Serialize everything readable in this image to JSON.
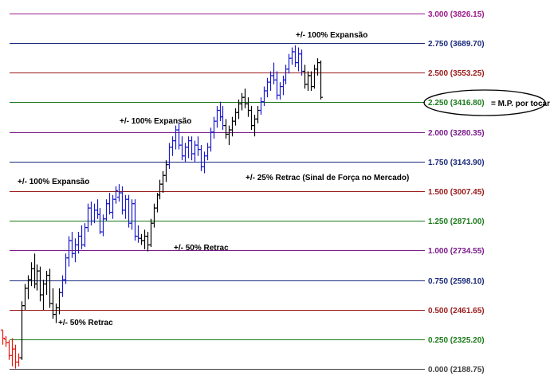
{
  "chart_data": {
    "type": "ohlc",
    "y_scale": "index",
    "ylim": [
      2188.75,
      3826.15
    ],
    "colors": {
      "red": "#e8140c",
      "black": "#000000",
      "blue": "#1a1acc"
    },
    "levels": [
      {
        "ratio": "0.000",
        "value": "2188.75",
        "price": 2188.75,
        "color": "#404040"
      },
      {
        "ratio": "0.250",
        "value": "2325.20",
        "price": 2325.2,
        "color": "#1a7a1a"
      },
      {
        "ratio": "0.500",
        "value": "2461.65",
        "price": 2461.65,
        "color": "#9a1a1a"
      },
      {
        "ratio": "0.750",
        "value": "2598.10",
        "price": 2598.1,
        "color": "#1a2a7a"
      },
      {
        "ratio": "1.000",
        "value": "2734.55",
        "price": 2734.55,
        "color": "#7a1a8a"
      },
      {
        "ratio": "1.250",
        "value": "2871.00",
        "price": 2871.0,
        "color": "#1a7a1a"
      },
      {
        "ratio": "1.500",
        "value": "3007.45",
        "price": 3007.45,
        "color": "#9a1a1a"
      },
      {
        "ratio": "1.750",
        "value": "3143.90",
        "price": 3143.9,
        "color": "#1a2a7a"
      },
      {
        "ratio": "2.000",
        "value": "3280.35",
        "price": 3280.35,
        "color": "#7a1a8a"
      },
      {
        "ratio": "2.250",
        "value": "3416.80",
        "price": 3416.8,
        "color": "#1a7a1a"
      },
      {
        "ratio": "2.500",
        "value": "3553.25",
        "price": 3553.25,
        "color": "#9a1a1a"
      },
      {
        "ratio": "2.750",
        "value": "3689.70",
        "price": 3689.7,
        "color": "#1a2a7a"
      },
      {
        "ratio": "3.000",
        "value": "3826.15",
        "price": 3826.15,
        "color": "#9a1a8a"
      }
    ],
    "annotations": [
      {
        "text": "+/- 100% Expansão"
      },
      {
        "text": "+/- 100% Expansão"
      },
      {
        "text": "+/- 100% Expansão"
      },
      {
        "text": "+/- 25% Retrac (Sinal de Força no Mercado)"
      },
      {
        "text": "+/- 50% Retrac"
      },
      {
        "text": "+/- 50% Retrac"
      }
    ],
    "callout": {
      "text": "= M.P. por tocar"
    },
    "series": [
      {
        "color": "red",
        "bars": [
          [
            2368,
            2368,
            2300,
            2330
          ],
          [
            2326,
            2340,
            2290,
            2310
          ],
          [
            2310,
            2320,
            2230,
            2250
          ],
          [
            2250,
            2330,
            2200,
            2280
          ],
          [
            2280,
            2300,
            2190,
            2220
          ],
          [
            2220,
            2260,
            2200,
            2240
          ]
        ]
      },
      {
        "color": "black",
        "bars": [
          [
            2240,
            2500,
            2230,
            2480
          ],
          [
            2480,
            2580,
            2460,
            2560
          ],
          [
            2560,
            2620,
            2510,
            2600
          ],
          [
            2600,
            2680,
            2570,
            2650
          ],
          [
            2650,
            2720,
            2560,
            2580
          ],
          [
            2580,
            2670,
            2550,
            2640
          ],
          [
            2640,
            2660,
            2500,
            2530
          ],
          [
            2530,
            2600,
            2460,
            2580
          ],
          [
            2580,
            2640,
            2530,
            2620
          ],
          [
            2620,
            2650,
            2470,
            2490
          ],
          [
            2490,
            2560,
            2420,
            2440
          ],
          [
            2440,
            2490,
            2400,
            2470
          ],
          [
            2470,
            2560,
            2440,
            2540
          ]
        ]
      },
      {
        "color": "blue",
        "bars": [
          [
            2540,
            2620,
            2520,
            2600
          ],
          [
            2600,
            2720,
            2580,
            2700
          ],
          [
            2700,
            2800,
            2660,
            2780
          ],
          [
            2780,
            2820,
            2700,
            2720
          ],
          [
            2720,
            2790,
            2680,
            2760
          ],
          [
            2760,
            2820,
            2720,
            2800
          ],
          [
            2800,
            2850,
            2740,
            2760
          ],
          [
            2760,
            2860,
            2750,
            2840
          ],
          [
            2840,
            2950,
            2820,
            2930
          ],
          [
            2930,
            2960,
            2850,
            2870
          ],
          [
            2870,
            2950,
            2860,
            2920
          ],
          [
            2920,
            2970,
            2880,
            2900
          ],
          [
            2900,
            2930,
            2810,
            2820
          ],
          [
            2820,
            2900,
            2800,
            2880
          ],
          [
            2880,
            2970,
            2870,
            2950
          ],
          [
            2950,
            3000,
            2900,
            2910
          ],
          [
            2910,
            2990,
            2880,
            2970
          ],
          [
            2970,
            3030,
            2950,
            3010
          ],
          [
            2980,
            3040,
            2960,
            3000
          ],
          [
            3000,
            3030,
            2900,
            2920
          ],
          [
            2920,
            2990,
            2880,
            2970
          ],
          [
            2970,
            2990,
            2840,
            2860
          ],
          [
            2860,
            2970,
            2830,
            2950
          ],
          [
            2950,
            2970,
            2780,
            2800
          ],
          [
            2800,
            2850,
            2770,
            2790
          ]
        ]
      },
      {
        "color": "black",
        "bars": [
          [
            2790,
            2810,
            2760,
            2780
          ],
          [
            2780,
            2830,
            2740,
            2800
          ],
          [
            2800,
            2820,
            2730,
            2760
          ],
          [
            2760,
            2880,
            2750,
            2860
          ],
          [
            2860,
            2950,
            2840,
            2930
          ],
          [
            2930,
            3000,
            2910,
            2990
          ],
          [
            2990,
            3060,
            2970,
            3040
          ],
          [
            3040,
            3100,
            3000,
            3080
          ],
          [
            3080,
            3150,
            3050,
            3130
          ]
        ]
      },
      {
        "color": "blue",
        "bars": [
          [
            3130,
            3230,
            3110,
            3210
          ],
          [
            3210,
            3260,
            3170,
            3240
          ],
          [
            3240,
            3310,
            3200,
            3290
          ],
          [
            3290,
            3320,
            3200,
            3220
          ],
          [
            3220,
            3260,
            3150,
            3170
          ],
          [
            3170,
            3230,
            3140,
            3210
          ],
          [
            3210,
            3260,
            3160,
            3240
          ],
          [
            3240,
            3260,
            3150,
            3180
          ],
          [
            3180,
            3240,
            3140,
            3220
          ],
          [
            3220,
            3260,
            3170,
            3200
          ],
          [
            3200,
            3220,
            3100,
            3120
          ],
          [
            3120,
            3190,
            3090,
            3170
          ],
          [
            3170,
            3230,
            3150,
            3210
          ],
          [
            3210,
            3300,
            3190,
            3280
          ],
          [
            3280,
            3350,
            3250,
            3330
          ],
          [
            3330,
            3400,
            3300,
            3380
          ],
          [
            3380,
            3420,
            3330,
            3350
          ],
          [
            3350,
            3400,
            3290,
            3310
          ]
        ]
      },
      {
        "color": "black",
        "bars": [
          [
            3310,
            3340,
            3250,
            3270
          ],
          [
            3270,
            3310,
            3220,
            3290
          ],
          [
            3290,
            3350,
            3260,
            3330
          ],
          [
            3330,
            3390,
            3310,
            3370
          ],
          [
            3370,
            3430,
            3340,
            3410
          ],
          [
            3410,
            3460,
            3380,
            3440
          ],
          [
            3440,
            3480,
            3390,
            3410
          ],
          [
            3410,
            3440,
            3350,
            3380
          ],
          [
            3380,
            3400,
            3290,
            3310
          ],
          [
            3310,
            3360,
            3260,
            3340
          ],
          [
            3340,
            3400,
            3320,
            3380
          ]
        ]
      },
      {
        "color": "blue",
        "bars": [
          [
            3380,
            3440,
            3360,
            3420
          ],
          [
            3420,
            3490,
            3400,
            3470
          ],
          [
            3470,
            3530,
            3440,
            3510
          ],
          [
            3510,
            3560,
            3470,
            3540
          ],
          [
            3540,
            3600,
            3500,
            3520
          ],
          [
            3520,
            3560,
            3430,
            3450
          ],
          [
            3450,
            3510,
            3430,
            3490
          ],
          [
            3490,
            3540,
            3450,
            3520
          ],
          [
            3520,
            3590,
            3500,
            3570
          ],
          [
            3570,
            3640,
            3550,
            3620
          ],
          [
            3620,
            3670,
            3590,
            3650
          ],
          [
            3650,
            3680,
            3580,
            3600
          ],
          [
            3600,
            3670,
            3560,
            3640
          ],
          [
            3640,
            3660,
            3540,
            3560
          ]
        ]
      },
      {
        "color": "black",
        "bars": [
          [
            3560,
            3590,
            3480,
            3500
          ],
          [
            3500,
            3560,
            3470,
            3540
          ],
          [
            3540,
            3560,
            3470,
            3490
          ],
          [
            3490,
            3590,
            3480,
            3570
          ],
          [
            3570,
            3620,
            3540,
            3600
          ],
          [
            3600,
            3610,
            3430,
            3440
          ]
        ]
      }
    ]
  }
}
